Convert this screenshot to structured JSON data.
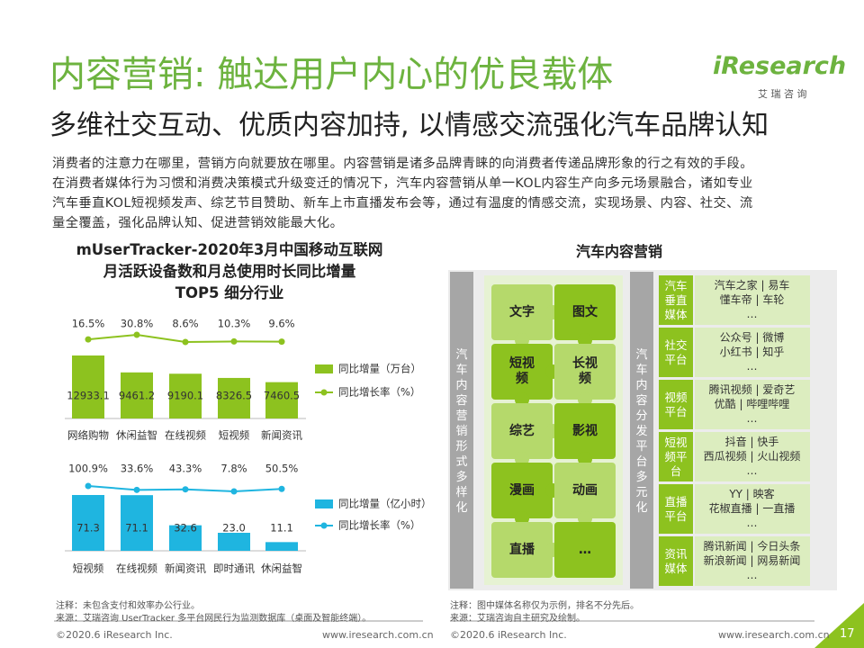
{
  "header": {
    "title": "内容营销: 触达用户内心的优良载体",
    "subtitle": "多维社交互动、优质内容加持, 以情感交流强化汽车品牌认知",
    "logo": "iResearch",
    "logo_cn": "艾 瑞 咨 询"
  },
  "intro_lines": [
    "消费者的注意力在哪里，营销方向就要放在哪里。内容营销是诸多品牌青睐的向消费者传递品牌形象的行之有效的手段。",
    "在消费者媒体行为习惯和消费决策模式升级变迁的情况下，汽车内容营销从单一KOL内容生产向多元场景融合，诸如专业",
    "汽车垂直KOL短视频发声、综艺节目赞助、新车上市直播发布会等，通过有温度的情感交流，实现场景、内容、社交、流",
    "量全覆盖，强化品牌认知、促进营销效能最大化。"
  ],
  "left": {
    "title_lines": [
      "mUserTracker-2020年3月中国移动互联网",
      "月活跃设备数和月总使用时长同比增量",
      "TOP5 细分行业"
    ],
    "charts": [
      {
        "categories": [
          "网络购物",
          "休闲益智",
          "在线视频",
          "短视频",
          "新闻资讯"
        ],
        "bars": {
          "name": "同比增量（万台）",
          "color": "#8dc21f",
          "values": [
            12933.1,
            9461.2,
            9190.1,
            8326.5,
            7460.5
          ]
        },
        "line": {
          "name": "同比增长率（%）",
          "color": "#8dc21f",
          "values": [
            16.5,
            30.8,
            8.6,
            10.3,
            9.6
          ],
          "value_labels": [
            "16.5%",
            "30.8%",
            "8.6%",
            "10.3%",
            "9.6%"
          ]
        }
      },
      {
        "categories": [
          "短视频",
          "在线视频",
          "新闻资讯",
          "即时通讯",
          "休闲益智"
        ],
        "bars": {
          "name": "同比增量（亿小时）",
          "color": "#1fb5e0",
          "values": [
            71.3,
            71.1,
            32.6,
            23,
            11.1
          ],
          "value_labels": [
            "71.3",
            "71.1",
            "32.6",
            "23.0",
            "11.1"
          ]
        },
        "line": {
          "name": "同比增长率（%）",
          "color": "#1fb5e0",
          "values": [
            100.9,
            33.6,
            43.3,
            7.8,
            50.5
          ],
          "value_labels": [
            "100.9%",
            "33.6%",
            "43.3%",
            "7.8%",
            "50.5%"
          ]
        }
      }
    ],
    "notes": [
      "注释：未包含支付和效率办公行业。",
      "来源：艾瑞咨询 UserTracker 多平台网民行为监测数据库（桌面及智能终端）。"
    ],
    "footer": [
      "©2020.6 iResearch Inc.",
      "www.iresearch.com.cn"
    ]
  },
  "right": {
    "title": "汽车内容营销",
    "left_column": "汽车内容营销形式多样化",
    "pieces": [
      "文字",
      "图文",
      "短视频",
      "长视频",
      "综艺",
      "影视",
      "漫画",
      "动画",
      "直播",
      "…"
    ],
    "mid_column": "汽车内容分发平台多元化",
    "platforms": [
      {
        "label": "汽车垂直媒体",
        "lines": [
          "汽车之家 | 易车",
          "懂车帝 | 车轮",
          "…"
        ]
      },
      {
        "label": "社交平台",
        "lines": [
          "公众号 | 微博",
          "小红书 | 知乎",
          "…"
        ]
      },
      {
        "label": "视频平台",
        "lines": [
          "腾讯视频 | 爱奇艺",
          "优酷 | 哔哩哔哩",
          "…"
        ]
      },
      {
        "label": "短视频平台",
        "lines": [
          "抖音 | 快手",
          "西瓜视频 | 火山视频",
          "…"
        ]
      },
      {
        "label": "直播平台",
        "lines": [
          "YY | 映客",
          "花椒直播 | 一直播",
          "…"
        ]
      },
      {
        "label": "资讯媒体",
        "lines": [
          "腾讯新闻 | 今日头条",
          "新浪新闻 | 网易新闻",
          "…"
        ]
      }
    ],
    "notes": [
      "注释：图中媒体名称仅为示例，排名不分先后。",
      "来源：艾瑞咨询自主研究及绘制。"
    ],
    "footer": [
      "©2020.6 iResearch Inc.",
      "www.iresearch.com.cn"
    ]
  },
  "page_number": "17"
}
